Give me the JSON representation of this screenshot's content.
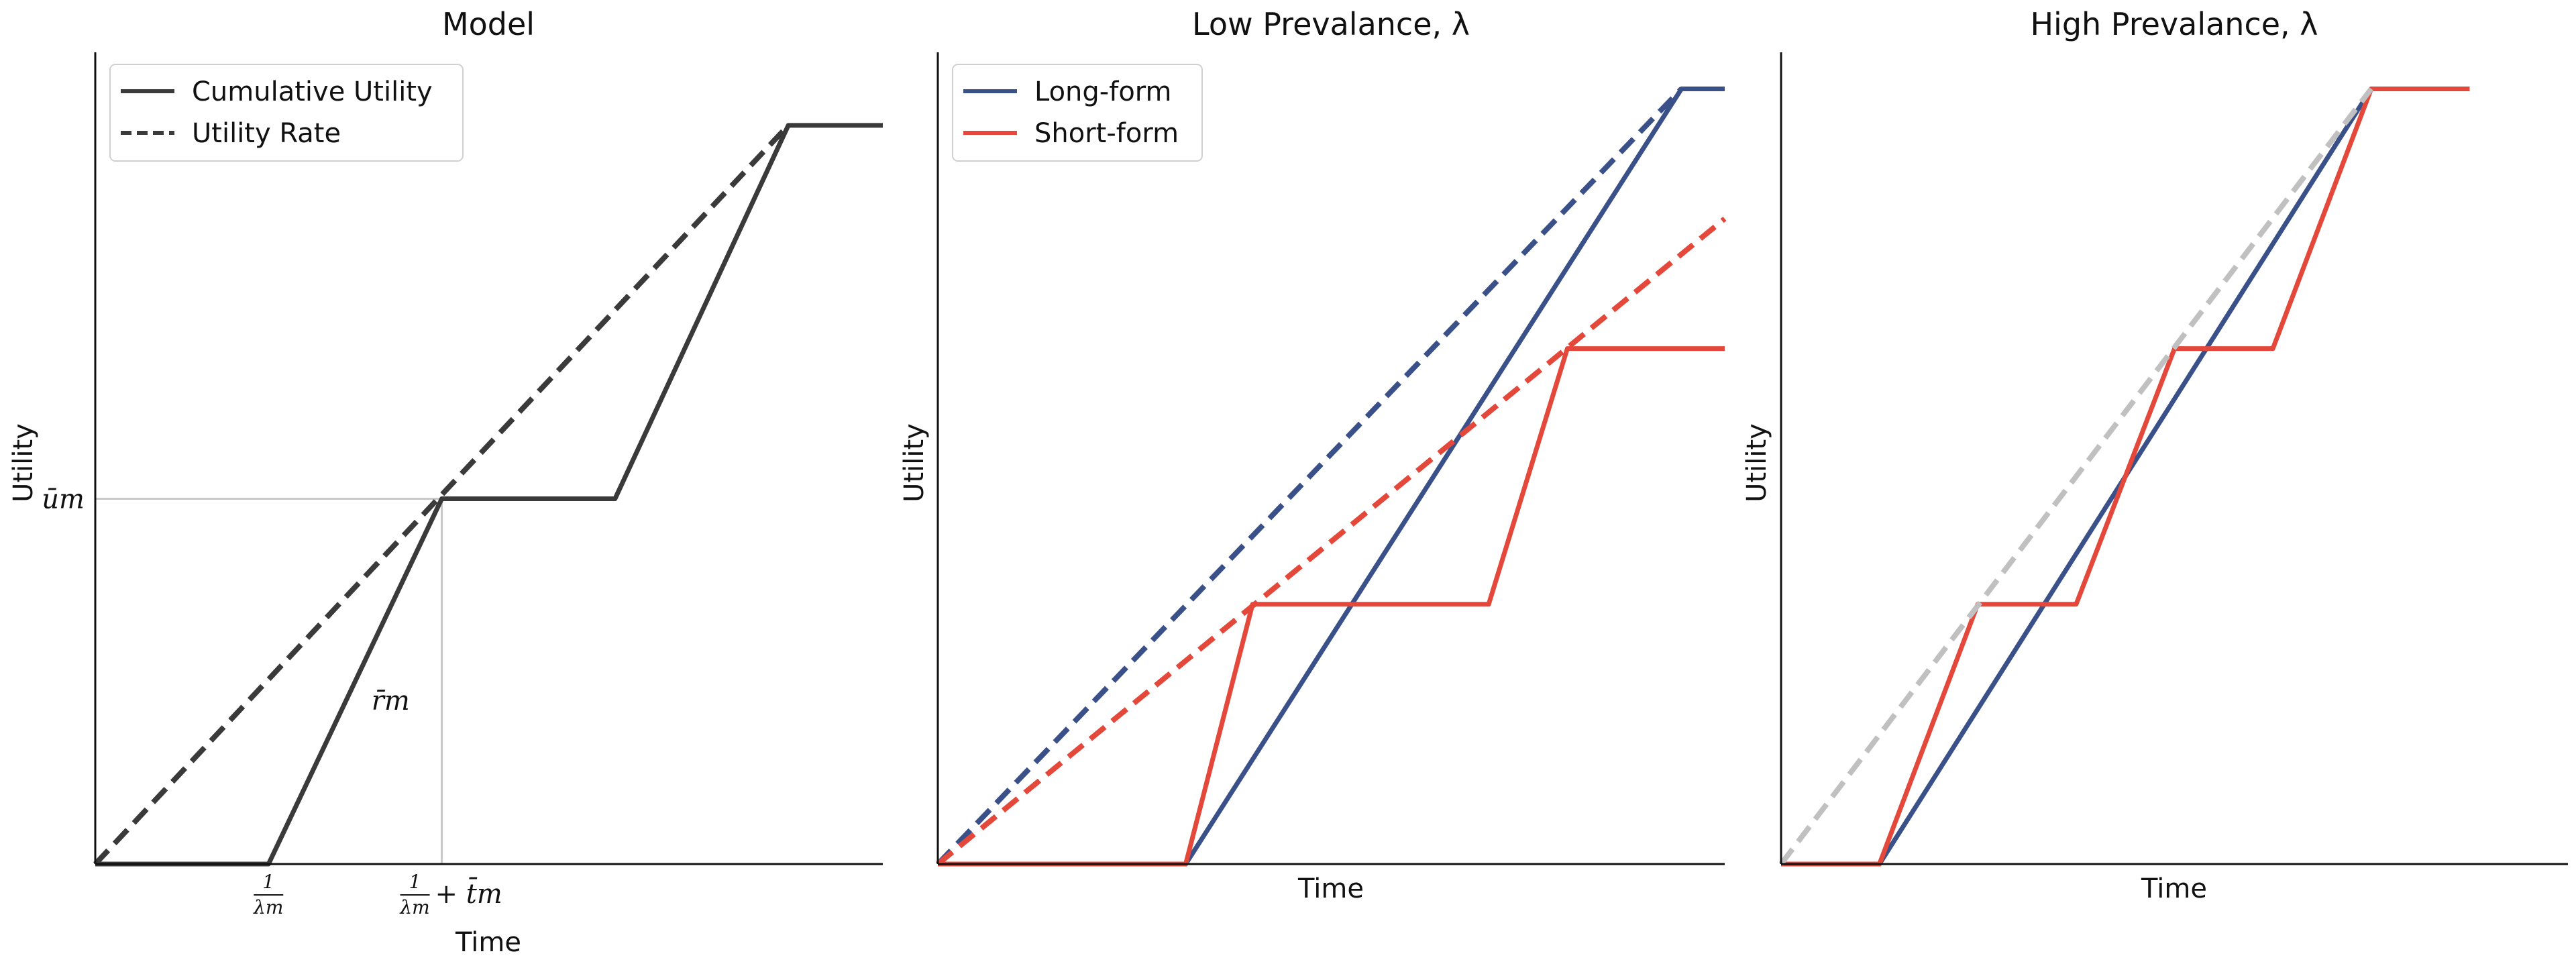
{
  "chart_data": [
    {
      "type": "line",
      "title": "Model",
      "xlabel": "Time",
      "ylabel": "Utility",
      "xlim": [
        0,
        10
      ],
      "ylim": [
        0,
        10
      ],
      "xticks": [
        {
          "x": 2.2,
          "num": "1",
          "den": "λm"
        },
        {
          "x": 4.4,
          "num": "1",
          "den": "λm",
          "suffix": "+ t̄m"
        }
      ],
      "yticks": [
        {
          "y": 4.5,
          "label": "ūm"
        }
      ],
      "annotations": [
        {
          "x": 3.75,
          "y": 1.9,
          "text": "r̄m"
        }
      ],
      "reference_lines": {
        "x": 4.4,
        "y": 4.5,
        "color": "#c8c8c8"
      },
      "legend": {
        "position": "top-left",
        "entries": [
          "Cumulative Utility",
          "Utility Rate"
        ]
      },
      "series": [
        {
          "name": "Cumulative Utility",
          "style": "solid",
          "color": "#3a3a3a",
          "points": [
            [
              0,
              0
            ],
            [
              2.2,
              0
            ],
            [
              4.4,
              4.5
            ],
            [
              6.6,
              4.5
            ],
            [
              8.8,
              9.1
            ],
            [
              10,
              9.1
            ]
          ]
        },
        {
          "name": "Utility Rate",
          "style": "dashed",
          "color": "#3a3a3a",
          "points": [
            [
              0,
              0
            ],
            [
              8.8,
              9.1
            ]
          ]
        }
      ]
    },
    {
      "type": "line",
      "title": "Low Prevalance, λ",
      "xlabel": "Time",
      "ylabel": "Utility",
      "xlim": [
        0,
        10
      ],
      "ylim": [
        0,
        10
      ],
      "legend": {
        "position": "top-left",
        "entries": [
          "Long-form",
          "Short-form"
        ]
      },
      "series": [
        {
          "name": "Long-form",
          "style": "solid",
          "color": "#3a5088",
          "points": [
            [
              0,
              0
            ],
            [
              3.15,
              0
            ],
            [
              9.45,
              9.55
            ],
            [
              10,
              9.55
            ]
          ]
        },
        {
          "name": "Long-form rate",
          "style": "dashed",
          "color": "#3a5088",
          "points": [
            [
              0,
              0
            ],
            [
              9.45,
              9.55
            ]
          ]
        },
        {
          "name": "Short-form",
          "style": "solid",
          "color": "#e4483a",
          "points": [
            [
              0,
              0
            ],
            [
              3.15,
              0
            ],
            [
              4.0,
              3.2
            ],
            [
              7.0,
              3.2
            ],
            [
              8.0,
              6.35
            ],
            [
              10,
              6.35
            ]
          ]
        },
        {
          "name": "Short-form rate",
          "style": "dashed",
          "color": "#e4483a",
          "points": [
            [
              0,
              0
            ],
            [
              10,
              7.95
            ]
          ]
        }
      ]
    },
    {
      "type": "line",
      "title": "High Prevalance, λ",
      "xlabel": "Time",
      "ylabel": "Utility",
      "xlim": [
        0,
        10
      ],
      "ylim": [
        0,
        10
      ],
      "series": [
        {
          "name": "Long-form",
          "style": "solid",
          "color": "#3a5088",
          "points": [
            [
              0,
              0
            ],
            [
              1.25,
              0
            ],
            [
              7.5,
              9.55
            ],
            [
              8.75,
              9.55
            ]
          ]
        },
        {
          "name": "Short-form",
          "style": "solid",
          "color": "#e4483a",
          "points": [
            [
              0,
              0
            ],
            [
              1.25,
              0
            ],
            [
              2.5,
              3.2
            ],
            [
              3.75,
              3.2
            ],
            [
              5.0,
              6.35
            ],
            [
              6.25,
              6.35
            ],
            [
              7.5,
              9.55
            ],
            [
              8.75,
              9.55
            ]
          ]
        },
        {
          "name": "Rate",
          "style": "dashed",
          "color": "#c0c0c0",
          "points": [
            [
              0,
              0
            ],
            [
              7.5,
              9.55
            ]
          ]
        }
      ]
    }
  ]
}
